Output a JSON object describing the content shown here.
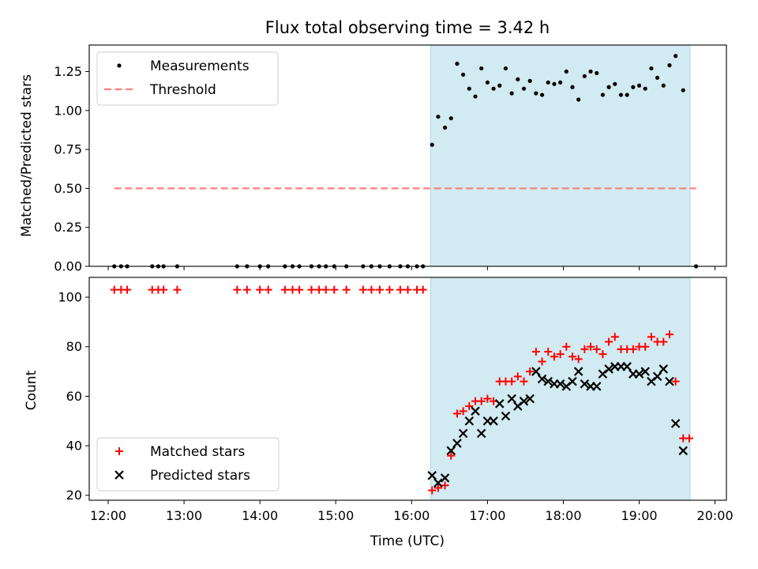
{
  "title": "Flux total observing time = 3.42 h",
  "xlabel": "Time (UTC)",
  "xlim_hours": [
    11.75,
    20.15
  ],
  "x_ticks": [
    "12:00",
    "13:00",
    "14:00",
    "15:00",
    "16:00",
    "17:00",
    "18:00",
    "19:00",
    "20:00"
  ],
  "span_hours": [
    16.25,
    19.67
  ],
  "span_color": "#add8e6",
  "chart_data": [
    {
      "type": "scatter",
      "name": "ratio-panel",
      "ylabel": "Matched/Predicted stars",
      "ylim": [
        0,
        1.42
      ],
      "y_ticks": [
        0.0,
        0.25,
        0.5,
        0.75,
        1.0,
        1.25
      ],
      "threshold": {
        "value": 0.5,
        "x_range": [
          12.08,
          19.75
        ],
        "color": "#ff7f7f"
      },
      "legend": [
        {
          "label": "Measurements",
          "marker": "dot",
          "color": "#000000"
        },
        {
          "label": "Threshold",
          "marker": "dashed-line",
          "color": "#ff7f7f"
        }
      ],
      "series": [
        {
          "label": "Measurements",
          "points": [
            [
              12.08,
              0
            ],
            [
              12.17,
              0
            ],
            [
              12.25,
              0
            ],
            [
              12.58,
              0
            ],
            [
              12.66,
              0
            ],
            [
              12.73,
              0
            ],
            [
              12.91,
              0
            ],
            [
              13.7,
              0
            ],
            [
              13.83,
              0
            ],
            [
              14.0,
              0
            ],
            [
              14.11,
              0
            ],
            [
              14.33,
              0
            ],
            [
              14.43,
              0
            ],
            [
              14.52,
              0
            ],
            [
              14.68,
              0
            ],
            [
              14.78,
              0
            ],
            [
              14.87,
              0
            ],
            [
              14.98,
              0
            ],
            [
              15.14,
              0
            ],
            [
              15.36,
              0
            ],
            [
              15.47,
              0
            ],
            [
              15.58,
              0
            ],
            [
              15.71,
              0
            ],
            [
              15.85,
              0
            ],
            [
              15.95,
              0
            ],
            [
              16.07,
              0
            ],
            [
              16.15,
              0
            ],
            [
              16.27,
              0.78
            ],
            [
              16.35,
              0.96
            ],
            [
              16.44,
              0.89
            ],
            [
              16.52,
              0.95
            ],
            [
              16.6,
              1.3
            ],
            [
              16.68,
              1.23
            ],
            [
              16.76,
              1.14
            ],
            [
              16.84,
              1.09
            ],
            [
              16.92,
              1.27
            ],
            [
              17.0,
              1.18
            ],
            [
              17.08,
              1.14
            ],
            [
              17.16,
              1.16
            ],
            [
              17.24,
              1.27
            ],
            [
              17.32,
              1.11
            ],
            [
              17.4,
              1.2
            ],
            [
              17.48,
              1.14
            ],
            [
              17.56,
              1.19
            ],
            [
              17.64,
              1.11
            ],
            [
              17.72,
              1.1
            ],
            [
              17.8,
              1.18
            ],
            [
              17.88,
              1.17
            ],
            [
              17.96,
              1.18
            ],
            [
              18.04,
              1.25
            ],
            [
              18.12,
              1.15
            ],
            [
              18.2,
              1.07
            ],
            [
              18.28,
              1.22
            ],
            [
              18.36,
              1.25
            ],
            [
              18.44,
              1.24
            ],
            [
              18.52,
              1.1
            ],
            [
              18.6,
              1.15
            ],
            [
              18.68,
              1.17
            ],
            [
              18.76,
              1.1
            ],
            [
              18.84,
              1.1
            ],
            [
              18.92,
              1.15
            ],
            [
              19.0,
              1.16
            ],
            [
              19.08,
              1.14
            ],
            [
              19.16,
              1.27
            ],
            [
              19.24,
              1.21
            ],
            [
              19.32,
              1.16
            ],
            [
              19.4,
              1.29
            ],
            [
              19.48,
              1.35
            ],
            [
              19.58,
              1.13
            ],
            [
              19.75,
              0
            ]
          ]
        }
      ]
    },
    {
      "type": "scatter",
      "name": "count-panel",
      "ylabel": "Count",
      "ylim": [
        18,
        108
      ],
      "y_ticks": [
        20,
        40,
        60,
        80,
        100
      ],
      "legend": [
        {
          "label": "Matched stars",
          "marker": "plus",
          "color": "#ff0000"
        },
        {
          "label": "Predicted stars",
          "marker": "x",
          "color": "#000000"
        }
      ],
      "series": [
        {
          "label": "Matched stars",
          "marker": "plus",
          "color": "#ff0000",
          "points": [
            [
              12.08,
              103
            ],
            [
              12.17,
              103
            ],
            [
              12.25,
              103
            ],
            [
              12.58,
              103
            ],
            [
              12.66,
              103
            ],
            [
              12.73,
              103
            ],
            [
              12.91,
              103
            ],
            [
              13.7,
              103
            ],
            [
              13.83,
              103
            ],
            [
              14.0,
              103
            ],
            [
              14.11,
              103
            ],
            [
              14.33,
              103
            ],
            [
              14.43,
              103
            ],
            [
              14.52,
              103
            ],
            [
              14.68,
              103
            ],
            [
              14.78,
              103
            ],
            [
              14.87,
              103
            ],
            [
              14.98,
              103
            ],
            [
              15.14,
              103
            ],
            [
              15.36,
              103
            ],
            [
              15.47,
              103
            ],
            [
              15.58,
              103
            ],
            [
              15.71,
              103
            ],
            [
              15.85,
              103
            ],
            [
              15.95,
              103
            ],
            [
              16.07,
              103
            ],
            [
              16.15,
              103
            ],
            [
              16.27,
              22
            ],
            [
              16.35,
              23
            ],
            [
              16.44,
              24
            ],
            [
              16.52,
              36
            ],
            [
              16.6,
              53
            ],
            [
              16.68,
              54
            ],
            [
              16.76,
              56
            ],
            [
              16.84,
              58
            ],
            [
              16.92,
              58
            ],
            [
              17.0,
              59
            ],
            [
              17.08,
              58
            ],
            [
              17.16,
              66
            ],
            [
              17.24,
              66
            ],
            [
              17.32,
              66
            ],
            [
              17.4,
              68
            ],
            [
              17.48,
              66
            ],
            [
              17.56,
              70
            ],
            [
              17.64,
              78
            ],
            [
              17.72,
              74
            ],
            [
              17.8,
              78
            ],
            [
              17.88,
              76
            ],
            [
              17.96,
              77
            ],
            [
              18.04,
              80
            ],
            [
              18.12,
              76
            ],
            [
              18.2,
              75
            ],
            [
              18.28,
              79
            ],
            [
              18.36,
              80
            ],
            [
              18.44,
              79
            ],
            [
              18.52,
              77
            ],
            [
              18.6,
              82
            ],
            [
              18.68,
              84
            ],
            [
              18.76,
              79
            ],
            [
              18.84,
              79
            ],
            [
              18.92,
              79
            ],
            [
              19.0,
              80
            ],
            [
              19.08,
              80
            ],
            [
              19.16,
              84
            ],
            [
              19.24,
              82
            ],
            [
              19.32,
              82
            ],
            [
              19.4,
              85
            ],
            [
              19.48,
              66
            ],
            [
              19.58,
              43
            ],
            [
              19.66,
              43
            ]
          ]
        },
        {
          "label": "Predicted stars",
          "marker": "x",
          "color": "#000000",
          "points": [
            [
              16.27,
              28
            ],
            [
              16.35,
              25
            ],
            [
              16.44,
              27
            ],
            [
              16.52,
              38
            ],
            [
              16.6,
              41
            ],
            [
              16.68,
              45
            ],
            [
              16.76,
              50
            ],
            [
              16.84,
              54
            ],
            [
              16.92,
              45
            ],
            [
              17.0,
              50
            ],
            [
              17.08,
              50
            ],
            [
              17.16,
              57
            ],
            [
              17.24,
              52
            ],
            [
              17.32,
              59
            ],
            [
              17.4,
              56
            ],
            [
              17.48,
              58
            ],
            [
              17.56,
              59
            ],
            [
              17.64,
              70
            ],
            [
              17.72,
              67
            ],
            [
              17.8,
              66
            ],
            [
              17.88,
              65
            ],
            [
              17.96,
              65
            ],
            [
              18.04,
              64
            ],
            [
              18.12,
              66
            ],
            [
              18.2,
              70
            ],
            [
              18.28,
              65
            ],
            [
              18.36,
              64
            ],
            [
              18.44,
              64
            ],
            [
              18.52,
              69
            ],
            [
              18.6,
              71
            ],
            [
              18.68,
              72
            ],
            [
              18.76,
              72
            ],
            [
              18.84,
              72
            ],
            [
              18.92,
              69
            ],
            [
              19.0,
              69
            ],
            [
              19.08,
              70
            ],
            [
              19.16,
              66
            ],
            [
              19.24,
              68
            ],
            [
              19.32,
              71
            ],
            [
              19.4,
              66
            ],
            [
              19.48,
              49
            ],
            [
              19.58,
              38
            ]
          ]
        }
      ]
    }
  ]
}
